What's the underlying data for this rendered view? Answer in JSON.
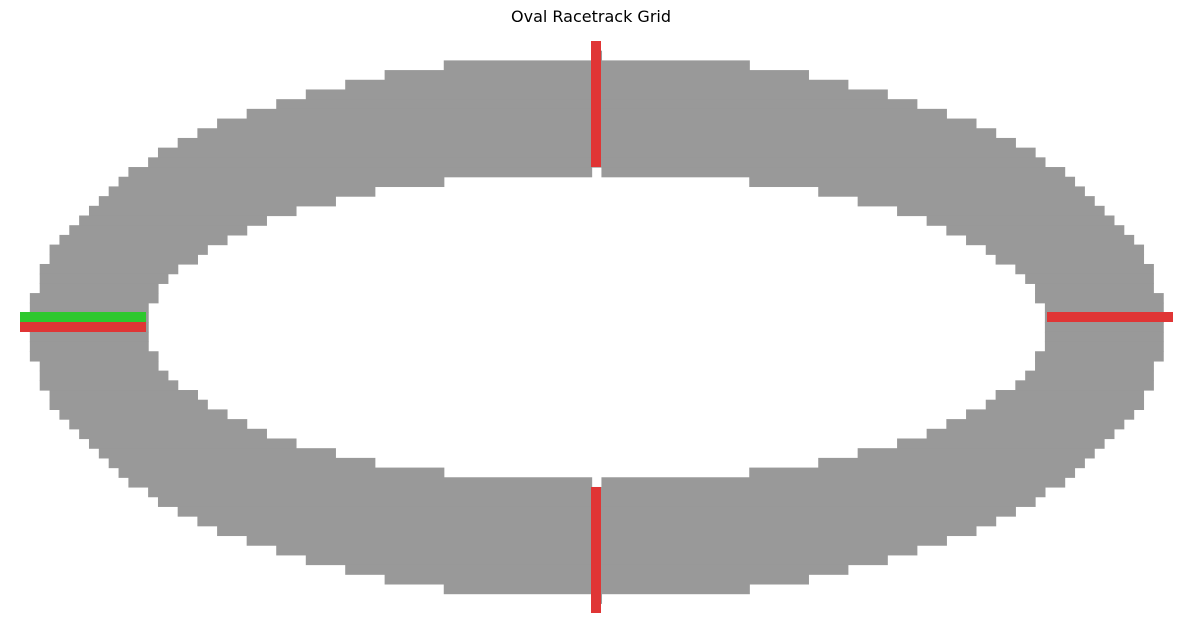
{
  "title": "Oval Racetrack Grid",
  "colors": {
    "background": "#ffffff",
    "track": "#999999",
    "checkpoint": "#e03535",
    "start_line": "#2ec82e"
  },
  "track": {
    "cell_size": 1
  },
  "chart_data": {
    "type": "heatmap",
    "title": "Oval Racetrack Grid",
    "grid": {
      "cols": 117,
      "rows": 59
    },
    "outer_ellipse": {
      "center": [
        58.5,
        29.5
      ],
      "radius_x": 57.5,
      "radius_y": 28
    },
    "inner_ellipse": {
      "center": [
        58.5,
        29.5
      ],
      "radius_x": 45.5,
      "radius_y": 16
    },
    "checkpoints": [
      {
        "orientation": "horizontal",
        "side": "left",
        "color": "#e03535"
      },
      {
        "orientation": "vertical",
        "side": "top",
        "color": "#e03535"
      },
      {
        "orientation": "horizontal",
        "side": "right",
        "color": "#e03535"
      },
      {
        "orientation": "vertical",
        "side": "bottom",
        "color": "#e03535"
      }
    ],
    "start_line": {
      "orientation": "horizontal",
      "side": "left",
      "color": "#2ec82e"
    }
  }
}
